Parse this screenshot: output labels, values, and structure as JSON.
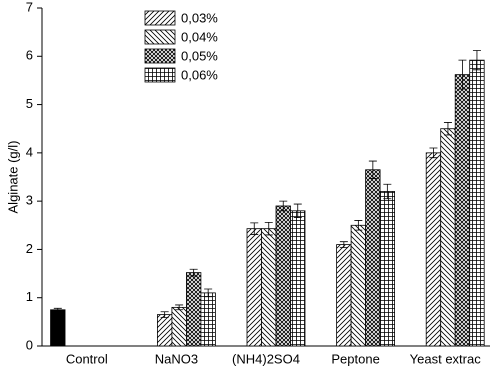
{
  "chart_data": {
    "type": "bar",
    "ylabel": "Alginate (g/l)",
    "categories": [
      "Control",
      "NaNO3",
      "(NH4)2SO4",
      "Peptone",
      "Yeast  extrac"
    ],
    "series": [
      {
        "color": "#000000",
        "pattern": "solid",
        "values": [
          0.75,
          null,
          null,
          null,
          null
        ],
        "errors": [
          0.03,
          null,
          null,
          null,
          null
        ]
      },
      {
        "name": "0,03%",
        "color": "#000000",
        "pattern": "diagonal",
        "values": [
          null,
          0.65,
          2.43,
          2.1,
          4.0
        ],
        "errors": [
          null,
          0.06,
          0.12,
          0.06,
          0.1
        ]
      },
      {
        "name": "0,04%",
        "color": "#000000",
        "pattern": "back-diagonal",
        "values": [
          null,
          0.8,
          2.43,
          2.5,
          4.5
        ],
        "errors": [
          null,
          0.05,
          0.13,
          0.1,
          0.13
        ]
      },
      {
        "name": "0,05%",
        "color": "#000000",
        "pattern": "crosshatch",
        "values": [
          null,
          1.52,
          2.9,
          3.65,
          5.62
        ],
        "errors": [
          null,
          0.07,
          0.1,
          0.18,
          0.3
        ]
      },
      {
        "name": "0,06%",
        "color": "#000000",
        "pattern": "grid",
        "values": [
          null,
          1.1,
          2.8,
          3.2,
          5.92
        ],
        "errors": [
          null,
          0.08,
          0.14,
          0.15,
          0.2
        ]
      }
    ],
    "ylim": [
      0,
      7
    ],
    "yticks": [
      0,
      1,
      2,
      3,
      4,
      5,
      6,
      7
    ],
    "legend": "top-left"
  }
}
